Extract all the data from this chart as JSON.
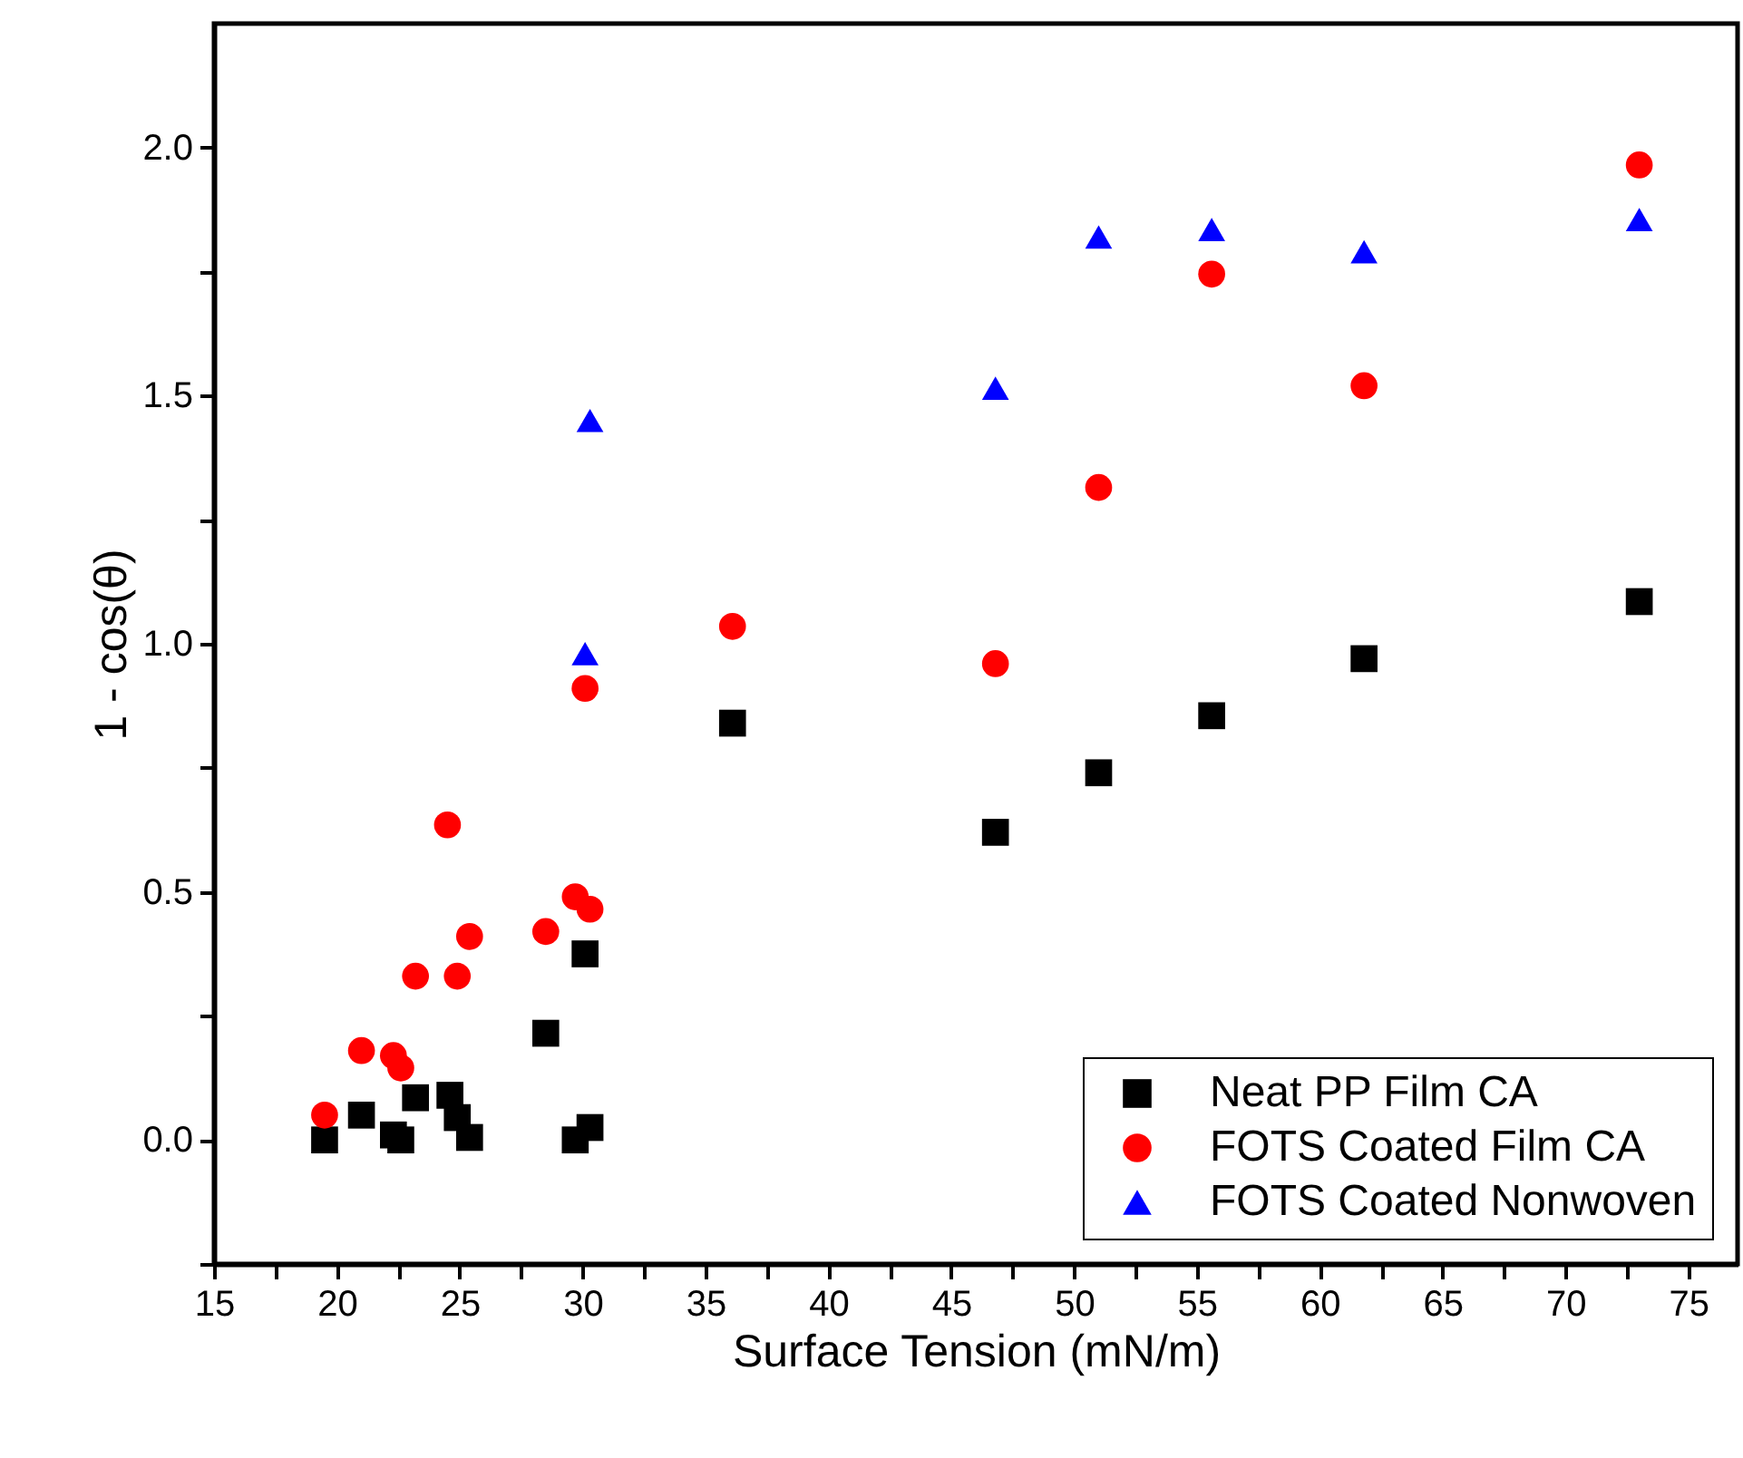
{
  "chart_data": {
    "type": "scatter",
    "xlabel": "Surface Tension (mN/m)",
    "ylabel": "1 - cos(θ)",
    "xlim": [
      15,
      77
    ],
    "ylim": [
      -0.25,
      2.25
    ],
    "xticks": [
      15,
      {
        "value": 17.5,
        "label": null
      },
      20,
      {
        "value": 22.5,
        "label": null
      },
      25,
      {
        "value": 27.5,
        "label": null
      },
      30,
      {
        "value": 32.5,
        "label": null
      },
      35,
      {
        "value": 37.5,
        "label": null
      },
      40,
      {
        "value": 42.5,
        "label": null
      },
      45,
      {
        "value": 47.5,
        "label": null
      },
      50,
      {
        "value": 52.5,
        "label": null
      },
      55,
      {
        "value": 57.5,
        "label": null
      },
      60,
      {
        "value": 62.5,
        "label": null
      },
      65,
      {
        "value": 67.5,
        "label": null
      },
      70,
      {
        "value": 72.5,
        "label": null
      },
      75
    ],
    "yticks": [
      {
        "value": -0.25,
        "label": null
      },
      {
        "value": 0,
        "label": "0.0"
      },
      {
        "value": 0.25,
        "label": null
      },
      {
        "value": 0.5,
        "label": "0.5"
      },
      {
        "value": 0.75,
        "label": null
      },
      {
        "value": 1,
        "label": "1.0"
      },
      {
        "value": 1.25,
        "label": null
      },
      {
        "value": 1.5,
        "label": "1.5"
      },
      {
        "value": 1.75,
        "label": null
      },
      {
        "value": 2,
        "label": "2.0"
      }
    ],
    "legend": "bottom right",
    "grid": false,
    "series": [
      {
        "name": "Neat PP Film CA",
        "color": "#000000",
        "marker": "square",
        "x": [
          19.5,
          21.0,
          22.3,
          22.6,
          23.2,
          24.6,
          24.9,
          25.4,
          28.5,
          29.7,
          30.3,
          30.1,
          36.1,
          46.8,
          51.0,
          55.6,
          61.8,
          73.0
        ],
        "values": [
          0.0,
          0.05,
          0.01,
          0.0,
          0.085,
          0.09,
          0.045,
          0.005,
          0.215,
          0.0,
          0.025,
          0.375,
          0.84,
          0.62,
          0.74,
          0.855,
          0.97,
          1.085
        ]
      },
      {
        "name": "FOTS Coated Film CA",
        "color": "#ff0000",
        "marker": "circle",
        "x": [
          19.5,
          21.0,
          22.3,
          22.6,
          23.2,
          24.5,
          24.9,
          25.4,
          28.5,
          29.7,
          30.3,
          30.1,
          36.1,
          46.8,
          51.0,
          55.6,
          61.8,
          73.0
        ],
        "values": [
          0.05,
          0.18,
          0.17,
          0.145,
          0.33,
          0.635,
          0.33,
          0.41,
          0.42,
          0.49,
          0.465,
          0.91,
          1.035,
          0.96,
          1.315,
          1.745,
          1.52,
          1.965
        ]
      },
      {
        "name": "FOTS Coated Nonwoven",
        "color": "#0000ff",
        "marker": "triangle",
        "x": [
          30.3,
          30.1,
          46.8,
          51.0,
          55.6,
          61.8,
          73.0
        ],
        "values": [
          1.45,
          0.98,
          1.515,
          1.82,
          1.835,
          1.79,
          1.855
        ]
      }
    ]
  }
}
